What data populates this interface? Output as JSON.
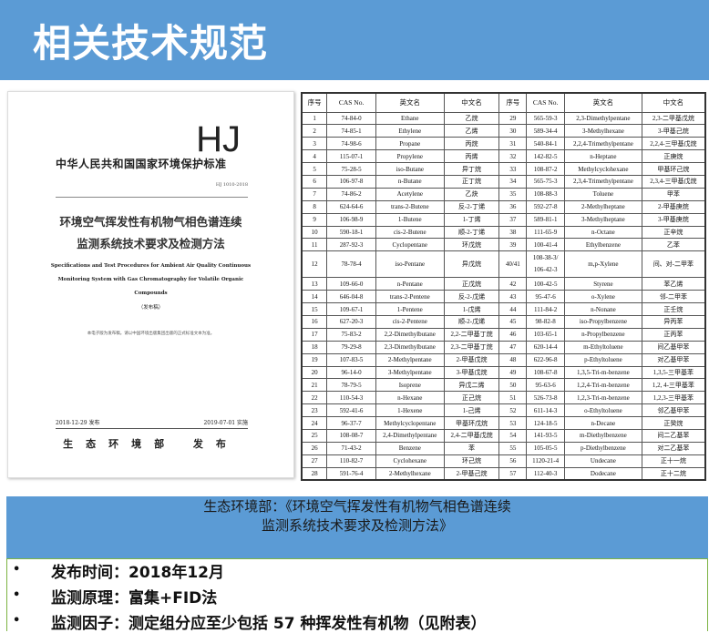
{
  "header": {
    "title": "相关技术规范"
  },
  "document": {
    "logo": "HJ",
    "standard_org": "中华人民共和国国家环境保护标准",
    "number": "HJ 1010-2018",
    "title_line1": "环境空气挥发性有机物气相色谱连续",
    "title_line2": "监测系统技术要求及检测方法",
    "english_title": "Specifications and Test Procedures for Ambient Air Quality Continuous Monitoring System with Gas Chromatography for Volatile Organic Compounds",
    "draft": "（发布稿）",
    "note": "本电子版为发布稿。请以中国环境出版集团出版的正式标准文本为准。",
    "issue_date": "2018-12-29 发布",
    "effective_date": "2019-07-01 实施",
    "publisher": "生态环境部 发布"
  },
  "table": {
    "headers": [
      "序号",
      "CAS No.",
      "英文名",
      "中文名",
      "序号",
      "CAS No.",
      "英文名",
      "中文名"
    ],
    "left": [
      [
        "1",
        "74-84-0",
        "Ethane",
        "乙烷"
      ],
      [
        "2",
        "74-85-1",
        "Ethylene",
        "乙烯"
      ],
      [
        "3",
        "74-98-6",
        "Propane",
        "丙烷"
      ],
      [
        "4",
        "115-07-1",
        "Propylene",
        "丙烯"
      ],
      [
        "5",
        "75-28-5",
        "iso-Butane",
        "异丁烷"
      ],
      [
        "6",
        "106-97-8",
        "n-Butane",
        "正丁烷"
      ],
      [
        "7",
        "74-86-2",
        "Acetylene",
        "乙炔"
      ],
      [
        "8",
        "624-64-6",
        "trans-2-Butene",
        "反-2-丁烯"
      ],
      [
        "9",
        "106-98-9",
        "1-Butene",
        "1-丁烯"
      ],
      [
        "10",
        "590-18-1",
        "cis-2-Butene",
        "顺-2-丁烯"
      ],
      [
        "11",
        "287-92-3",
        "Cyclopentane",
        "环戊烷"
      ],
      [
        "12",
        "78-78-4",
        "iso-Pentane",
        "异戊烷"
      ],
      [
        "13",
        "109-66-0",
        "n-Pentane",
        "正戊烷"
      ],
      [
        "14",
        "646-04-8",
        "trans-2-Pentene",
        "反-2-戊烯"
      ],
      [
        "15",
        "109-67-1",
        "1-Pentene",
        "1-戊烯"
      ],
      [
        "16",
        "627-20-3",
        "cis-2-Pentene",
        "顺-2-戊烯"
      ],
      [
        "17",
        "75-83-2",
        "2,2-Dimethylbutane",
        "2,2-二甲基丁烷"
      ],
      [
        "18",
        "79-29-8",
        "2,3-Dimethylbutane",
        "2,3-二甲基丁烷"
      ],
      [
        "19",
        "107-83-5",
        "2-Methylpentane",
        "2-甲基戊烷"
      ],
      [
        "20",
        "96-14-0",
        "3-Methylpentane",
        "3-甲基戊烷"
      ],
      [
        "21",
        "78-79-5",
        "Isoprene",
        "异戊二烯"
      ],
      [
        "22",
        "110-54-3",
        "n-Hexane",
        "正己烷"
      ],
      [
        "23",
        "592-41-6",
        "1-Hexene",
        "1-己烯"
      ],
      [
        "24",
        "96-37-7",
        "Methylcyclopentane",
        "甲基环戊烷"
      ],
      [
        "25",
        "108-08-7",
        "2,4-Dimethylpentane",
        "2,4-二甲基戊烷"
      ],
      [
        "26",
        "71-43-2",
        "Benzene",
        "苯"
      ],
      [
        "27",
        "110-82-7",
        "Cyclohexane",
        "环己烷"
      ],
      [
        "28",
        "591-76-4",
        "2-Methylhexane",
        "2-甲基己烷"
      ]
    ],
    "right": [
      [
        "29",
        "565-59-3",
        "2,3-Dimethylpentane",
        "2,3-二甲基戊烷"
      ],
      [
        "30",
        "589-34-4",
        "3-Methylhexane",
        "3-甲基己烷"
      ],
      [
        "31",
        "540-84-1",
        "2,2,4-Trimethylpentane",
        "2,2,4-三甲基戊烷"
      ],
      [
        "32",
        "142-82-5",
        "n-Heptane",
        "正庚烷"
      ],
      [
        "33",
        "108-87-2",
        "Methylcyclohexane",
        "甲基环己烷"
      ],
      [
        "34",
        "565-75-3",
        "2,3,4-Trimethylpentane",
        "2,3,4-三甲基戊烷"
      ],
      [
        "35",
        "108-88-3",
        "Toluene",
        "甲苯"
      ],
      [
        "36",
        "592-27-8",
        "2-Methylheptane",
        "2-甲基庚烷"
      ],
      [
        "37",
        "589-81-1",
        "3-Methylheptane",
        "3-甲基庚烷"
      ],
      [
        "38",
        "111-65-9",
        "n-Octane",
        "正辛烷"
      ],
      [
        "39",
        "100-41-4",
        "Ethylbenzene",
        "乙苯"
      ],
      [
        "40/41",
        "108-38-3/ 106-42-3",
        "m,p-Xylene",
        "间、对-二甲苯"
      ],
      [
        "42",
        "100-42-5",
        "Styrene",
        "苯乙烯"
      ],
      [
        "43",
        "95-47-6",
        "o-Xylene",
        "邻-二甲苯"
      ],
      [
        "44",
        "111-84-2",
        "n-Nonane",
        "正壬烷"
      ],
      [
        "45",
        "98-82-8",
        "iso-Propylbenzene",
        "异丙苯"
      ],
      [
        "46",
        "103-65-1",
        "n-Propylbenzene",
        "正丙苯"
      ],
      [
        "47",
        "620-14-4",
        "m-Ethyltoluene",
        "间乙基甲苯"
      ],
      [
        "48",
        "622-96-8",
        "p-Ethyltoluene",
        "对乙基甲苯"
      ],
      [
        "49",
        "108-67-8",
        "1,3,5-Tri-m-benzene",
        "1,3,5-三甲基苯"
      ],
      [
        "50",
        "95-63-6",
        "1,2,4-Tri-m-benzene",
        "1,2, 4-三甲基苯"
      ],
      [
        "51",
        "526-73-8",
        "1,2,3-Tri-m-benzene",
        "1,2,3-三甲基苯"
      ],
      [
        "52",
        "611-14-3",
        "o-Ethyltoluene",
        "邻乙基甲苯"
      ],
      [
        "53",
        "124-18-5",
        "n-Decane",
        "正癸烷"
      ],
      [
        "54",
        "141-93-5",
        "m-Diethylbenzene",
        "间二乙基苯"
      ],
      [
        "55",
        "105-05-5",
        "p-Diethylbenzene",
        "对二乙基苯"
      ],
      [
        "56",
        "1120-21-4",
        "Undecane",
        "正十一烷"
      ],
      [
        "57",
        "112-40-3",
        "Dodecane",
        "正十二烷"
      ]
    ]
  },
  "caption": {
    "line1": "生态环境部：《环境空气挥发性有机物气相色谱连续",
    "line2": "监测系统技术要求及检测方法》"
  },
  "bullets": [
    {
      "symbol": "•",
      "text": "发布时间：2018年12月"
    },
    {
      "symbol": "•",
      "text": "监测原理：富集+FID法"
    },
    {
      "symbol": "•",
      "text": "监测因子：测定组分应至少包括 57 种挥发性有机物（见附表）"
    }
  ],
  "colors": {
    "header_bg": "#5B9BD5",
    "caption_bg": "#5B9BD5",
    "bullet_border": "#7CB342"
  }
}
